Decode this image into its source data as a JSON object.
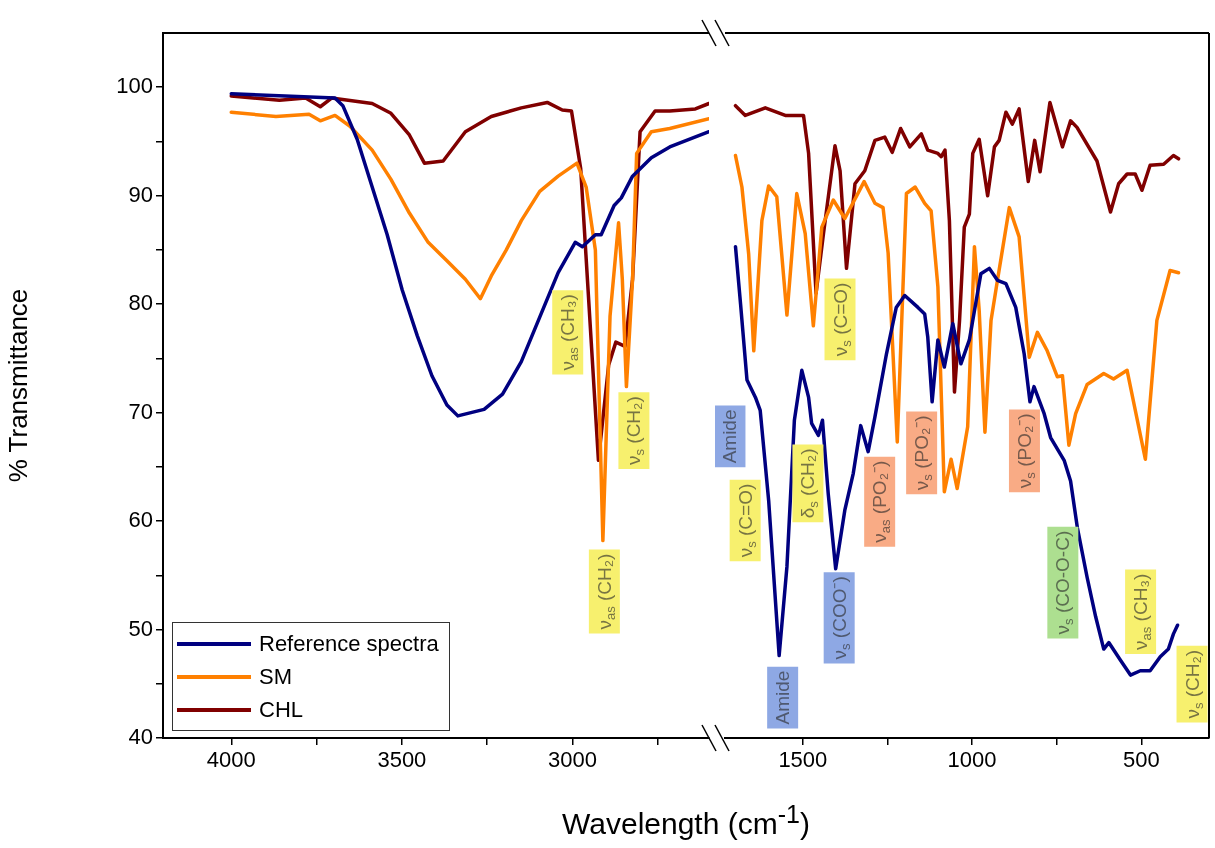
{
  "chart_data": [
    {
      "type": "line",
      "xlabel": "Wavelength (cm$^{-1}$)",
      "ylabel": "% Transmittance",
      "xlim": [
        4200,
        2600
      ],
      "ylim": [
        40,
        105
      ],
      "legend": "bottom left",
      "xticks": [
        4000,
        {
          "value": 3750,
          "label": null
        },
        3500,
        {
          "value": 3250,
          "label": null
        },
        3000,
        {
          "value": 2750,
          "label": null
        }
      ],
      "yticks": [
        40,
        {
          "value": 45,
          "label": null
        },
        50,
        {
          "value": 55,
          "label": null
        },
        60,
        {
          "value": 65,
          "label": null
        },
        70,
        {
          "value": 75,
          "label": null
        },
        80,
        {
          "value": 85,
          "label": null
        },
        90,
        {
          "value": 95,
          "label": null
        },
        100
      ],
      "series": [
        {
          "name": "Reference spectra",
          "color": "#000080",
          "x": [
            4000,
            3696,
            3673,
            3631,
            3587,
            3543,
            3499,
            3455,
            3412,
            3368,
            3336,
            3259,
            3205,
            3150,
            3096,
            3042,
            2992,
            2971,
            2933,
            2916,
            2878,
            2857,
            2824,
            2769,
            2715,
            2600
          ],
          "values": [
            99.4,
            99.0,
            98.3,
            95.2,
            90.8,
            86.4,
            81.3,
            77.1,
            73.4,
            70.7,
            69.7,
            70.3,
            71.7,
            74.7,
            78.8,
            82.9,
            85.7,
            85.3,
            86.4,
            86.4,
            89.1,
            89.8,
            91.8,
            93.5,
            94.5,
            95.9
          ]
        },
        {
          "name": "SM",
          "color": "#ff8000",
          "x": [
            4000,
            3869,
            3772,
            3739,
            3696,
            3652,
            3587,
            3532,
            3478,
            3423,
            3368,
            3314,
            3270,
            3238,
            3194,
            3150,
            3096,
            3042,
            2987,
            2960,
            2933,
            2911,
            2890,
            2865,
            2854,
            2842,
            2824,
            2812,
            2769,
            2715,
            2600
          ],
          "values": [
            97.7,
            97.3,
            97.5,
            96.9,
            97.4,
            96.4,
            94.2,
            91.5,
            88.4,
            85.7,
            84.0,
            82.3,
            80.5,
            82.6,
            85.0,
            87.7,
            90.4,
            91.8,
            93.0,
            90.8,
            85.0,
            58.2,
            78.9,
            87.5,
            82.3,
            72.4,
            82.3,
            93.9,
            95.9,
            96.2,
            97.1
          ]
        },
        {
          "name": "CHL",
          "color": "#800000",
          "x": [
            4000,
            3859,
            3782,
            3739,
            3706,
            3587,
            3532,
            3478,
            3434,
            3379,
            3314,
            3238,
            3150,
            3074,
            3030,
            3003,
            2976,
            2924,
            2894,
            2873,
            2846,
            2824,
            2802,
            2758,
            2715,
            2640,
            2600
          ],
          "values": [
            99.2,
            98.8,
            99.0,
            98.2,
            99.0,
            98.5,
            97.6,
            95.6,
            93.0,
            93.2,
            95.9,
            97.3,
            98.1,
            98.6,
            97.9,
            97.8,
            92.5,
            65.6,
            74.4,
            76.5,
            76.1,
            82.3,
            95.9,
            97.8,
            97.8,
            98.0,
            98.5
          ]
        }
      ],
      "annotations": [
        {
          "text": "ν$_{as}$ (CH₃)",
          "x": 2992,
          "y": 85.7
        },
        {
          "text": "ν$_{s}$ (CH₂)",
          "x": 2842,
          "y": 72.4
        },
        {
          "text": "ν$_{as}$ (CH₂)",
          "x": 2911,
          "y": 58.2
        }
      ]
    },
    {
      "type": "line",
      "xlim": [
        1730,
        300
      ],
      "ylim": [
        40,
        105
      ],
      "tick_labels": "x",
      "xticks": [
        1500,
        {
          "value": 1250,
          "label": null
        },
        1000,
        {
          "value": 750,
          "label": null
        },
        500
      ],
      "series": [
        {
          "color": "#000080",
          "x": [
            1699,
            1684,
            1665,
            1640,
            1626,
            1601,
            1570,
            1547,
            1525,
            1503,
            1483,
            1474,
            1454,
            1442,
            1425,
            1403,
            1376,
            1351,
            1329,
            1307,
            1287,
            1253,
            1224,
            1199,
            1160,
            1140,
            1131,
            1118,
            1101,
            1082,
            1057,
            1033,
            1008,
            974,
            949,
            925,
            900,
            871,
            846,
            829,
            817,
            787,
            768,
            728,
            709,
            689,
            660,
            635,
            611,
            596,
            562,
            532,
            503,
            474,
            444,
            420,
            405,
            393
          ],
          "values": [
            85.3,
            80.0,
            73.0,
            71.4,
            70.2,
            61.9,
            47.6,
            55.8,
            69.3,
            73.9,
            71.4,
            69.0,
            67.9,
            69.3,
            62.5,
            55.6,
            61.0,
            64.4,
            68.8,
            66.4,
            69.6,
            75.4,
            79.7,
            80.8,
            79.7,
            79.1,
            77.0,
            71.0,
            76.7,
            74.2,
            78.2,
            74.5,
            76.7,
            82.8,
            83.3,
            82.2,
            81.9,
            79.7,
            75.4,
            71.0,
            72.4,
            69.9,
            67.7,
            65.6,
            63.7,
            59.4,
            54.8,
            51.2,
            48.2,
            48.8,
            47.2,
            45.8,
            46.2,
            46.2,
            47.5,
            48.2,
            49.6,
            50.4
          ]
        },
        {
          "color": "#ff8000",
          "x": [
            1699,
            1680,
            1660,
            1645,
            1621,
            1601,
            1577,
            1547,
            1518,
            1493,
            1469,
            1444,
            1410,
            1376,
            1319,
            1287,
            1263,
            1248,
            1221,
            1194,
            1168,
            1140,
            1121,
            1101,
            1082,
            1062,
            1044,
            1013,
            993,
            979,
            962,
            944,
            925,
            890,
            861,
            831,
            807,
            778,
            748,
            733,
            714,
            694,
            660,
            611,
            582,
            542,
            488,
            454,
            415,
            390
          ],
          "values": [
            93.7,
            90.8,
            84.6,
            75.7,
            87.7,
            90.9,
            89.9,
            79.0,
            90.2,
            86.5,
            78.0,
            87.1,
            89.6,
            87.9,
            91.3,
            89.3,
            88.9,
            84.7,
            67.3,
            90.2,
            90.8,
            89.3,
            88.6,
            81.6,
            62.7,
            65.7,
            63.0,
            68.7,
            85.3,
            79.4,
            68.2,
            78.5,
            82.2,
            88.9,
            86.2,
            75.1,
            77.4,
            75.7,
            73.3,
            73.4,
            67.0,
            69.9,
            72.6,
            73.6,
            73.1,
            73.9,
            65.7,
            78.5,
            83.1,
            82.9
          ]
        },
        {
          "color": "#800000",
          "x": [
            1699,
            1670,
            1611,
            1552,
            1498,
            1483,
            1461,
            1439,
            1405,
            1390,
            1371,
            1346,
            1317,
            1287,
            1258,
            1236,
            1211,
            1184,
            1150,
            1131,
            1101,
            1091,
            1080,
            1067,
            1052,
            1037,
            1023,
            1008,
            998,
            979,
            954,
            934,
            920,
            900,
            881,
            861,
            834,
            815,
            799,
            770,
            733,
            709,
            690,
            631,
            591,
            567,
            542,
            518,
            498,
            474,
            434,
            405,
            390
          ],
          "values": [
            98.3,
            97.4,
            98.1,
            97.4,
            97.4,
            93.9,
            81.0,
            86.5,
            94.6,
            92.3,
            83.3,
            91.1,
            92.3,
            95.1,
            95.4,
            94.0,
            96.2,
            94.5,
            95.7,
            94.2,
            93.9,
            93.6,
            94.2,
            87.7,
            71.9,
            78.5,
            87.1,
            88.3,
            93.9,
            95.2,
            90.0,
            94.5,
            95.1,
            97.7,
            96.6,
            98.0,
            91.3,
            95.1,
            92.2,
            98.6,
            94.5,
            96.9,
            96.3,
            93.2,
            88.5,
            91.1,
            92.0,
            92.0,
            90.5,
            92.8,
            92.9,
            93.7,
            93.4
          ]
        }
      ],
      "annotations": [
        {
          "text": "Amide",
          "x": 1640,
          "y": 71.4
        },
        {
          "text": "ν$_{s}$ (C=O)",
          "x": 1601,
          "y": 61.9
        },
        {
          "text": "Amide",
          "x": 1570,
          "y": 47.6
        },
        {
          "text": "δ$_{s}$ (CH₂)",
          "x": 1454,
          "y": 67.9
        },
        {
          "text": "ν$_{s}$ (COO⁻)",
          "x": 1403,
          "y": 55.6
        },
        {
          "text": "ν$_{as}$ (PO₂⁻)",
          "x": 1307,
          "y": 66.4
        },
        {
          "text": "ν$_{s}$ (C=O)",
          "x": 1371,
          "y": 83.3
        },
        {
          "text": "ν$_{s}$ (PO₂⁻)",
          "x": 1118,
          "y": 71.0
        },
        {
          "text": "ν$_{s}$ (PO₂⁻)",
          "x": 829,
          "y": 71.0
        },
        {
          "text": "ν$_{s}$ (CO-O-C)",
          "x": 689,
          "y": 59.4
        },
        {
          "text": "ν$_{as}$ (CH₃)",
          "x": 474,
          "y": 46.2
        },
        {
          "text": "ν$_{s}$ (CH₂)",
          "x": 393,
          "y": 50.4
        }
      ]
    }
  ]
}
